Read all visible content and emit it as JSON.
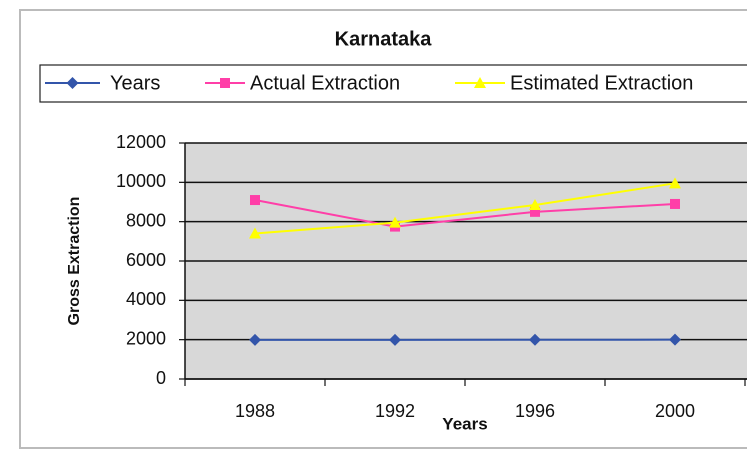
{
  "chart_data": {
    "type": "line",
    "title": "Karnataka",
    "x_label": "Years",
    "y_label": "Gross Extraction",
    "categories": [
      "1988",
      "1992",
      "1996",
      "2000"
    ],
    "series": [
      {
        "name": "Years",
        "color": "#3355aa",
        "marker": "diamond",
        "values": [
          1988,
          1992,
          1996,
          2000
        ]
      },
      {
        "name": "Actual Extraction",
        "color": "#ff3fa8",
        "marker": "square",
        "values": [
          9100,
          7750,
          8500,
          8900
        ]
      },
      {
        "name": "Estimated Extraction",
        "color": "#ffff00",
        "marker": "triangle",
        "values": [
          7400,
          7950,
          8850,
          9950
        ]
      }
    ],
    "ylim": [
      0,
      12000
    ],
    "yticks": [
      0,
      2000,
      4000,
      6000,
      8000,
      10000,
      12000
    ],
    "grid": true,
    "legend": "top"
  }
}
